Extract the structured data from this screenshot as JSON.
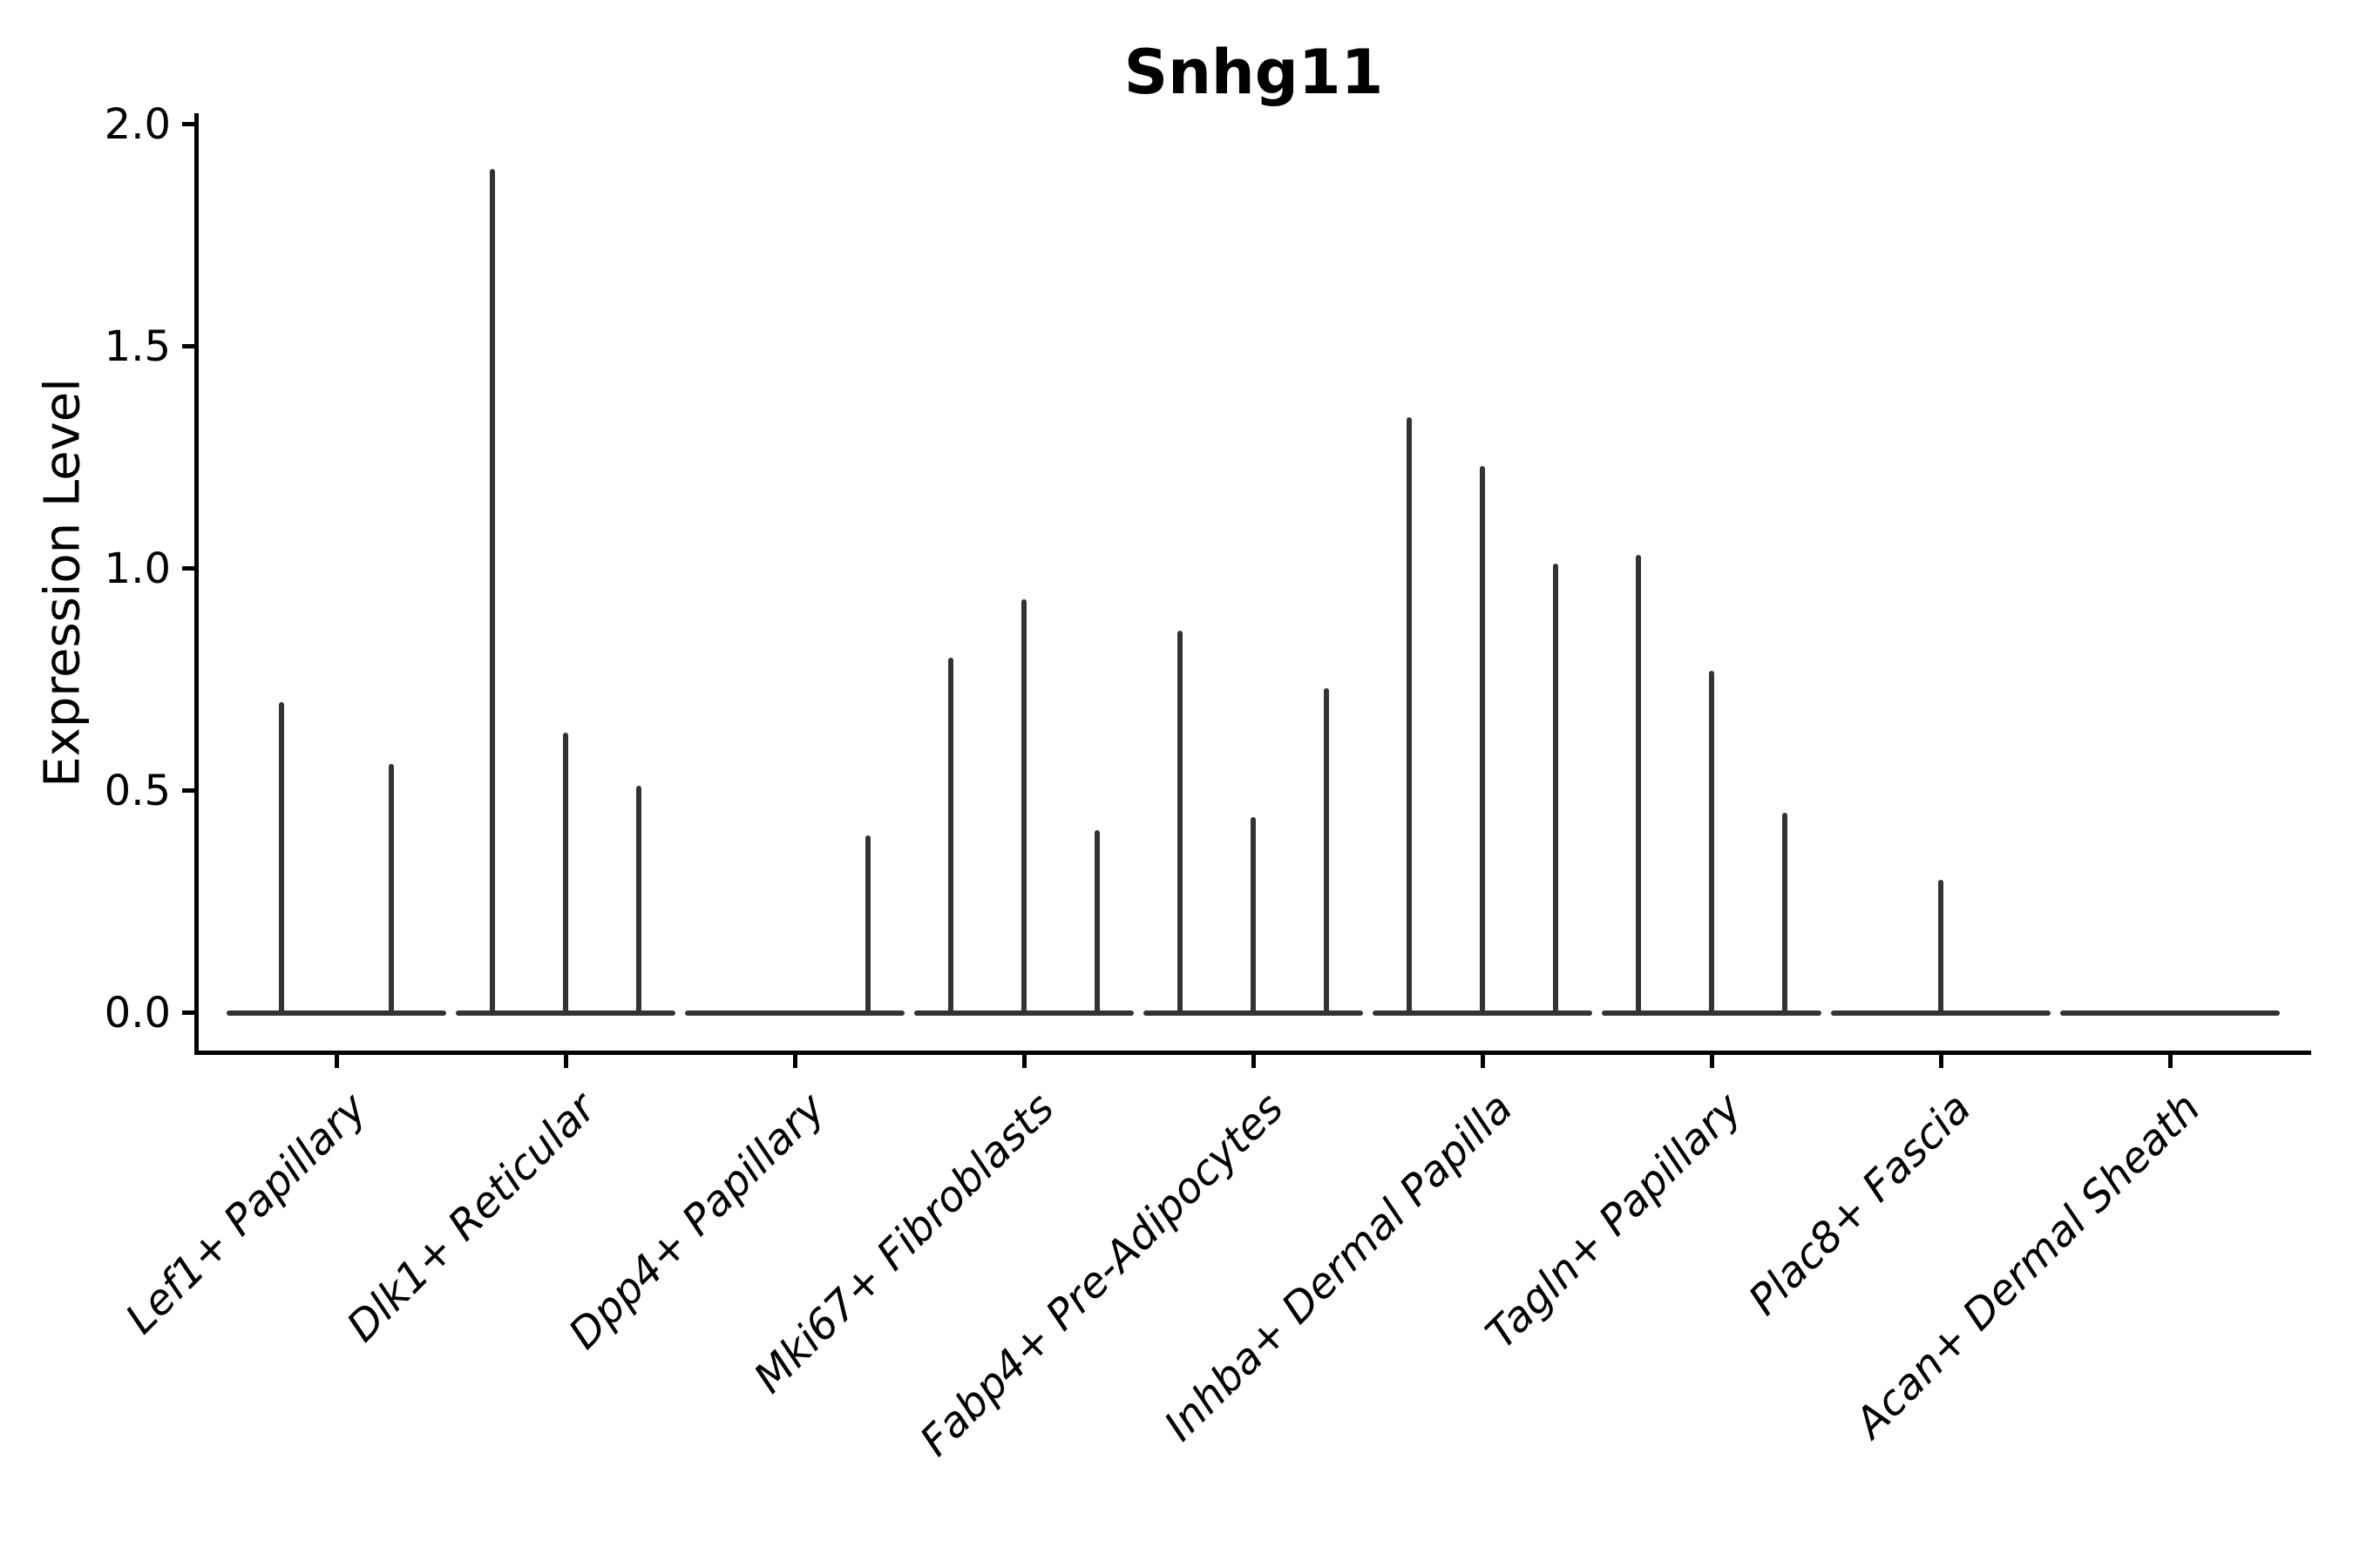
{
  "chart_data": {
    "type": "violin",
    "title": "Snhg11",
    "xlabel": "",
    "ylabel": "Expression Level",
    "ylim": [
      0.0,
      2.0
    ],
    "grid": false,
    "legend": "none",
    "yticks": [
      {
        "label": "2.0",
        "value": 2.0
      },
      {
        "label": "1.5",
        "value": 1.5
      },
      {
        "label": "1.0",
        "value": 1.0
      },
      {
        "label": "0.5",
        "value": 0.5
      },
      {
        "label": "0.0",
        "value": 0.0
      }
    ],
    "categories": [
      {
        "label": "Lef1+ Papillary",
        "spikes": [
          {
            "offset": -0.24,
            "value": 0.7
          },
          {
            "offset": 0.24,
            "value": 0.56
          }
        ]
      },
      {
        "label": "Dlk1+ Reticular",
        "spikes": [
          {
            "offset": -0.32,
            "value": 1.9
          },
          {
            "offset": 0.0,
            "value": 0.63
          },
          {
            "offset": 0.32,
            "value": 0.51
          }
        ]
      },
      {
        "label": "Dpp4+ Papillary",
        "spikes": [
          {
            "offset": 0.32,
            "value": 0.4
          }
        ]
      },
      {
        "label": "Mki67+ Fibroblasts",
        "spikes": [
          {
            "offset": -0.32,
            "value": 0.8
          },
          {
            "offset": 0.0,
            "value": 0.93
          },
          {
            "offset": 0.32,
            "value": 0.41
          }
        ]
      },
      {
        "label": "Fabp4+ Pre-Adipocytes",
        "spikes": [
          {
            "offset": -0.32,
            "value": 0.86
          },
          {
            "offset": 0.0,
            "value": 0.44
          },
          {
            "offset": 0.32,
            "value": 0.73
          }
        ]
      },
      {
        "label": "Inhba+ Dermal Papilla",
        "spikes": [
          {
            "offset": -0.32,
            "value": 1.34
          },
          {
            "offset": 0.0,
            "value": 1.23
          },
          {
            "offset": 0.32,
            "value": 1.01
          }
        ]
      },
      {
        "label": "Tagln+ Papillary",
        "spikes": [
          {
            "offset": -0.32,
            "value": 1.03
          },
          {
            "offset": 0.0,
            "value": 0.77
          },
          {
            "offset": 0.32,
            "value": 0.45
          }
        ]
      },
      {
        "label": "Plac8+ Fascia",
        "spikes": [
          {
            "offset": 0.0,
            "value": 0.3
          }
        ]
      },
      {
        "label": "Acan+ Dermal Sheath",
        "spikes": []
      }
    ],
    "colors": {
      "violin_stroke": "#333333",
      "axis": "#000000",
      "text": "#000000",
      "background": "#ffffff"
    }
  }
}
